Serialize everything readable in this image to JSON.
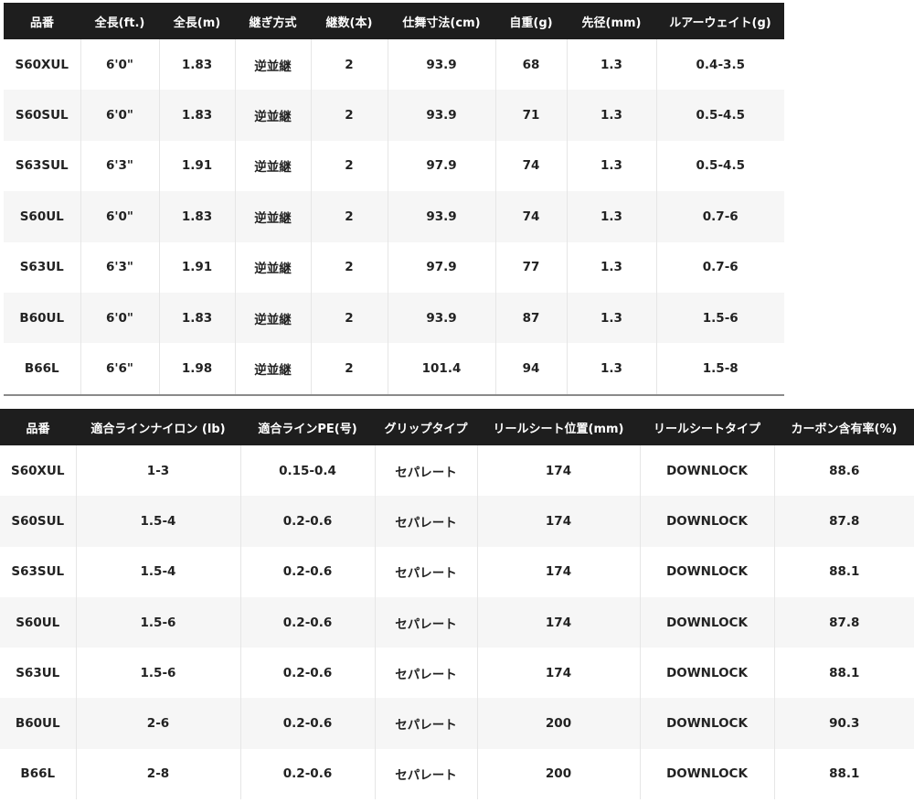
{
  "table1": {
    "headers": [
      "品番",
      "全長(ft.)",
      "全長(m)",
      "継ぎ方式",
      "継数(本)",
      "仕舞寸法(cm)",
      "自重(g)",
      "先径(mm)",
      "ルアーウェイト(g)"
    ],
    "rows": [
      [
        "S60XUL",
        "6'0\"",
        "1.83",
        "逆並継",
        "2",
        "93.9",
        "68",
        "1.3",
        "0.4-3.5"
      ],
      [
        "S60SUL",
        "6'0\"",
        "1.83",
        "逆並継",
        "2",
        "93.9",
        "71",
        "1.3",
        "0.5-4.5"
      ],
      [
        "S63SUL",
        "6'3\"",
        "1.91",
        "逆並継",
        "2",
        "97.9",
        "74",
        "1.3",
        "0.5-4.5"
      ],
      [
        "S60UL",
        "6'0\"",
        "1.83",
        "逆並継",
        "2",
        "93.9",
        "74",
        "1.3",
        "0.7-6"
      ],
      [
        "S63UL",
        "6'3\"",
        "1.91",
        "逆並継",
        "2",
        "97.9",
        "77",
        "1.3",
        "0.7-6"
      ],
      [
        "B60UL",
        "6'0\"",
        "1.83",
        "逆並継",
        "2",
        "93.9",
        "87",
        "1.3",
        "1.5-6"
      ],
      [
        "B66L",
        "6'6\"",
        "1.98",
        "逆並継",
        "2",
        "101.4",
        "94",
        "1.3",
        "1.5-8"
      ]
    ]
  },
  "table2": {
    "headers": [
      "品番",
      "適合ラインナイロン (lb)",
      "適合ラインPE(号)",
      "グリップタイプ",
      "リールシート位置(mm)",
      "リールシートタイプ",
      "カーボン含有率(%)"
    ],
    "rows": [
      [
        "S60XUL",
        "1-3",
        "0.15-0.4",
        "セパレート",
        "174",
        "DOWNLOCK",
        "88.6"
      ],
      [
        "S60SUL",
        "1.5-4",
        "0.2-0.6",
        "セパレート",
        "174",
        "DOWNLOCK",
        "87.8"
      ],
      [
        "S63SUL",
        "1.5-4",
        "0.2-0.6",
        "セパレート",
        "174",
        "DOWNLOCK",
        "88.1"
      ],
      [
        "S60UL",
        "1.5-6",
        "0.2-0.6",
        "セパレート",
        "174",
        "DOWNLOCK",
        "87.8"
      ],
      [
        "S63UL",
        "1.5-6",
        "0.2-0.6",
        "セパレート",
        "174",
        "DOWNLOCK",
        "88.1"
      ],
      [
        "B60UL",
        "2-6",
        "0.2-0.6",
        "セパレート",
        "200",
        "DOWNLOCK",
        "90.3"
      ],
      [
        "B66L",
        "2-8",
        "0.2-0.6",
        "セパレート",
        "200",
        "DOWNLOCK",
        "88.1"
      ]
    ]
  }
}
